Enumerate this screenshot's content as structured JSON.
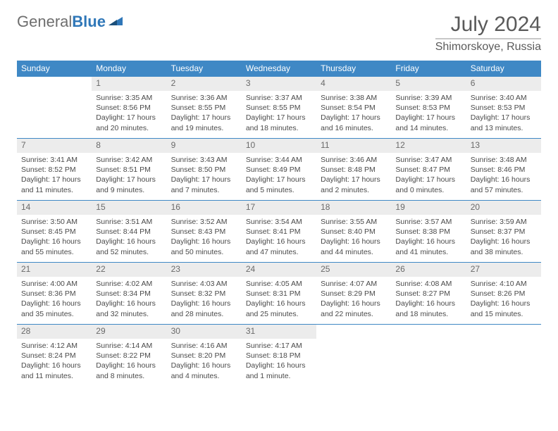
{
  "logo": {
    "word1": "General",
    "word2": "Blue"
  },
  "title": "July 2024",
  "location": "Shimorskoye, Russia",
  "colors": {
    "header_bg": "#3f88c5",
    "header_fg": "#ffffff",
    "daynum_bg": "#ececec",
    "text": "#4a4a4a",
    "border": "#3f88c5"
  },
  "fonts": {
    "title_size": 30,
    "location_size": 16,
    "dayhead_size": 12,
    "body_size": 10.5
  },
  "weekdays": [
    "Sunday",
    "Monday",
    "Tuesday",
    "Wednesday",
    "Thursday",
    "Friday",
    "Saturday"
  ],
  "weeks": [
    [
      {
        "n": "",
        "sunrise": "",
        "sunset": "",
        "day": ""
      },
      {
        "n": "1",
        "sunrise": "Sunrise: 3:35 AM",
        "sunset": "Sunset: 8:56 PM",
        "day": "Daylight: 17 hours and 20 minutes."
      },
      {
        "n": "2",
        "sunrise": "Sunrise: 3:36 AM",
        "sunset": "Sunset: 8:55 PM",
        "day": "Daylight: 17 hours and 19 minutes."
      },
      {
        "n": "3",
        "sunrise": "Sunrise: 3:37 AM",
        "sunset": "Sunset: 8:55 PM",
        "day": "Daylight: 17 hours and 18 minutes."
      },
      {
        "n": "4",
        "sunrise": "Sunrise: 3:38 AM",
        "sunset": "Sunset: 8:54 PM",
        "day": "Daylight: 17 hours and 16 minutes."
      },
      {
        "n": "5",
        "sunrise": "Sunrise: 3:39 AM",
        "sunset": "Sunset: 8:53 PM",
        "day": "Daylight: 17 hours and 14 minutes."
      },
      {
        "n": "6",
        "sunrise": "Sunrise: 3:40 AM",
        "sunset": "Sunset: 8:53 PM",
        "day": "Daylight: 17 hours and 13 minutes."
      }
    ],
    [
      {
        "n": "7",
        "sunrise": "Sunrise: 3:41 AM",
        "sunset": "Sunset: 8:52 PM",
        "day": "Daylight: 17 hours and 11 minutes."
      },
      {
        "n": "8",
        "sunrise": "Sunrise: 3:42 AM",
        "sunset": "Sunset: 8:51 PM",
        "day": "Daylight: 17 hours and 9 minutes."
      },
      {
        "n": "9",
        "sunrise": "Sunrise: 3:43 AM",
        "sunset": "Sunset: 8:50 PM",
        "day": "Daylight: 17 hours and 7 minutes."
      },
      {
        "n": "10",
        "sunrise": "Sunrise: 3:44 AM",
        "sunset": "Sunset: 8:49 PM",
        "day": "Daylight: 17 hours and 5 minutes."
      },
      {
        "n": "11",
        "sunrise": "Sunrise: 3:46 AM",
        "sunset": "Sunset: 8:48 PM",
        "day": "Daylight: 17 hours and 2 minutes."
      },
      {
        "n": "12",
        "sunrise": "Sunrise: 3:47 AM",
        "sunset": "Sunset: 8:47 PM",
        "day": "Daylight: 17 hours and 0 minutes."
      },
      {
        "n": "13",
        "sunrise": "Sunrise: 3:48 AM",
        "sunset": "Sunset: 8:46 PM",
        "day": "Daylight: 16 hours and 57 minutes."
      }
    ],
    [
      {
        "n": "14",
        "sunrise": "Sunrise: 3:50 AM",
        "sunset": "Sunset: 8:45 PM",
        "day": "Daylight: 16 hours and 55 minutes."
      },
      {
        "n": "15",
        "sunrise": "Sunrise: 3:51 AM",
        "sunset": "Sunset: 8:44 PM",
        "day": "Daylight: 16 hours and 52 minutes."
      },
      {
        "n": "16",
        "sunrise": "Sunrise: 3:52 AM",
        "sunset": "Sunset: 8:43 PM",
        "day": "Daylight: 16 hours and 50 minutes."
      },
      {
        "n": "17",
        "sunrise": "Sunrise: 3:54 AM",
        "sunset": "Sunset: 8:41 PM",
        "day": "Daylight: 16 hours and 47 minutes."
      },
      {
        "n": "18",
        "sunrise": "Sunrise: 3:55 AM",
        "sunset": "Sunset: 8:40 PM",
        "day": "Daylight: 16 hours and 44 minutes."
      },
      {
        "n": "19",
        "sunrise": "Sunrise: 3:57 AM",
        "sunset": "Sunset: 8:38 PM",
        "day": "Daylight: 16 hours and 41 minutes."
      },
      {
        "n": "20",
        "sunrise": "Sunrise: 3:59 AM",
        "sunset": "Sunset: 8:37 PM",
        "day": "Daylight: 16 hours and 38 minutes."
      }
    ],
    [
      {
        "n": "21",
        "sunrise": "Sunrise: 4:00 AM",
        "sunset": "Sunset: 8:36 PM",
        "day": "Daylight: 16 hours and 35 minutes."
      },
      {
        "n": "22",
        "sunrise": "Sunrise: 4:02 AM",
        "sunset": "Sunset: 8:34 PM",
        "day": "Daylight: 16 hours and 32 minutes."
      },
      {
        "n": "23",
        "sunrise": "Sunrise: 4:03 AM",
        "sunset": "Sunset: 8:32 PM",
        "day": "Daylight: 16 hours and 28 minutes."
      },
      {
        "n": "24",
        "sunrise": "Sunrise: 4:05 AM",
        "sunset": "Sunset: 8:31 PM",
        "day": "Daylight: 16 hours and 25 minutes."
      },
      {
        "n": "25",
        "sunrise": "Sunrise: 4:07 AM",
        "sunset": "Sunset: 8:29 PM",
        "day": "Daylight: 16 hours and 22 minutes."
      },
      {
        "n": "26",
        "sunrise": "Sunrise: 4:08 AM",
        "sunset": "Sunset: 8:27 PM",
        "day": "Daylight: 16 hours and 18 minutes."
      },
      {
        "n": "27",
        "sunrise": "Sunrise: 4:10 AM",
        "sunset": "Sunset: 8:26 PM",
        "day": "Daylight: 16 hours and 15 minutes."
      }
    ],
    [
      {
        "n": "28",
        "sunrise": "Sunrise: 4:12 AM",
        "sunset": "Sunset: 8:24 PM",
        "day": "Daylight: 16 hours and 11 minutes."
      },
      {
        "n": "29",
        "sunrise": "Sunrise: 4:14 AM",
        "sunset": "Sunset: 8:22 PM",
        "day": "Daylight: 16 hours and 8 minutes."
      },
      {
        "n": "30",
        "sunrise": "Sunrise: 4:16 AM",
        "sunset": "Sunset: 8:20 PM",
        "day": "Daylight: 16 hours and 4 minutes."
      },
      {
        "n": "31",
        "sunrise": "Sunrise: 4:17 AM",
        "sunset": "Sunset: 8:18 PM",
        "day": "Daylight: 16 hours and 1 minute."
      },
      {
        "n": "",
        "sunrise": "",
        "sunset": "",
        "day": ""
      },
      {
        "n": "",
        "sunrise": "",
        "sunset": "",
        "day": ""
      },
      {
        "n": "",
        "sunrise": "",
        "sunset": "",
        "day": ""
      }
    ]
  ]
}
